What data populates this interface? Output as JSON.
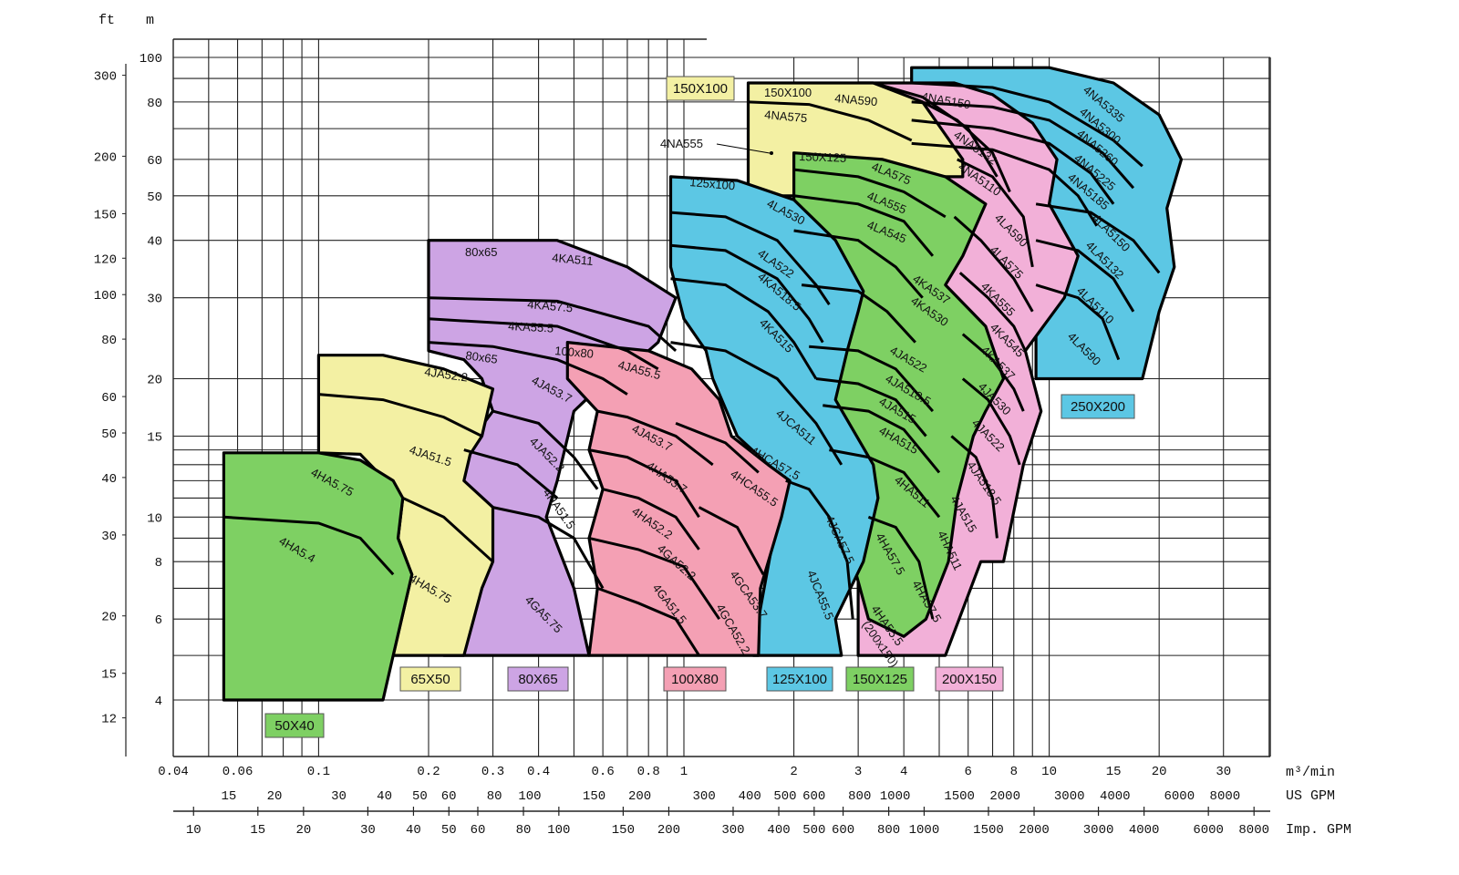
{
  "chart_data": {
    "type": "area",
    "title": "",
    "axis_units": {
      "left_outer": "ft",
      "left_inner": "m",
      "flow_metric": "m³/min",
      "flow_us": "US GPM",
      "flow_imp": "Imp. GPM"
    },
    "scale": "log-log",
    "x_range_m3_per_min": [
      0.04,
      45
    ],
    "y_range_m": [
      3,
      110
    ],
    "x_ticks": [
      "0.04",
      "0.06",
      "0.1",
      "0.2",
      "0.3",
      "0.4",
      "0.6",
      "0.8",
      "1",
      "2",
      "3",
      "4",
      "6",
      "8",
      "10",
      "15",
      "20",
      "30"
    ],
    "y_ticks_m": [
      "4",
      "6",
      "8",
      "10",
      "15",
      "20",
      "30",
      "40",
      "50",
      "60",
      "80",
      "100"
    ],
    "y_ticks_ft": [
      "12",
      "15",
      "20",
      "30",
      "40",
      "50",
      "60",
      "80",
      "100",
      "120",
      "150",
      "200",
      "300"
    ],
    "us_gpm_ticks": [
      "15",
      "20",
      "30",
      "40",
      "50",
      "60",
      "80",
      "100",
      "150",
      "200",
      "300",
      "400",
      "500",
      "600",
      "800",
      "1000",
      "1500",
      "2000",
      "3000",
      "4000",
      "6000",
      "8000"
    ],
    "imp_gpm_ticks": [
      "10",
      "15",
      "20",
      "30",
      "40",
      "50",
      "60",
      "80",
      "100",
      "150",
      "200",
      "300",
      "400",
      "500",
      "600",
      "800",
      "1000",
      "1500",
      "2000",
      "3000",
      "4000",
      "6000",
      "8000"
    ],
    "colors": {
      "green": "#7ed063",
      "yellow": "#f3f0a3",
      "purple": "#cda4e4",
      "pink": "#f4a0b4",
      "blue": "#5cc7e4",
      "light_pink": "#f2b0d8"
    },
    "pump_groups": [
      {
        "size": "50X40",
        "color": "green",
        "flow_range_m3min": [
          0.055,
          0.2
        ],
        "head_range_m": [
          4,
          13.8
        ],
        "models": [
          "4HA5.75",
          "4HA5.4"
        ]
      },
      {
        "size": "65X50",
        "color": "yellow",
        "flow_range_m3min": [
          0.1,
          0.3
        ],
        "head_range_m": [
          5,
          22.5
        ],
        "models": [
          "4JA52.2",
          "4JA51.5",
          "4HA5.75"
        ]
      },
      {
        "size": "80X65",
        "color": "purple",
        "flow_range_m3min": [
          0.2,
          1.0
        ],
        "head_range_m": [
          5,
          40
        ],
        "models": [
          "4KA511",
          "4KA57.5",
          "4KA55.5",
          "4JA53.7",
          "4JA52.2",
          "4HA51.5",
          "4GA5.75"
        ]
      },
      {
        "size": "100X80",
        "color": "pink",
        "flow_range_m3min": [
          0.45,
          1.8
        ],
        "head_range_m": [
          5,
          24
        ],
        "models": [
          "4JA55.5",
          "4JA53.7",
          "4HA53.7",
          "4HA52.2",
          "4GA52.2",
          "4GA51.5",
          "4HCA57.5",
          "4HCA55.5",
          "4GCA53.7",
          "4GCA52.2"
        ]
      },
      {
        "size": "125X100",
        "color": "blue",
        "flow_range_m3min": [
          0.9,
          3.7
        ],
        "head_range_m": [
          5,
          55
        ],
        "models": [
          "4LA530",
          "4LA522",
          "4KA518.5",
          "4KA515",
          "4JCA511",
          "4JCA57.5",
          "4JCA55.5"
        ]
      },
      {
        "size": "150X100",
        "color": "yellow",
        "flow_range_m3min": [
          1.5,
          6.0
        ],
        "head_range_m": [
          50,
          88
        ],
        "models": [
          "4NA590",
          "4NA575",
          "4NA555"
        ]
      },
      {
        "size": "150X125",
        "color": "green",
        "flow_range_m3min": [
          1.8,
          6.5
        ],
        "head_range_m": [
          5.5,
          62
        ],
        "models": [
          "4LA575",
          "4LA555",
          "4LA545",
          "4KA537",
          "4KA530",
          "4JA522",
          "4JA518.5",
          "4JA515",
          "4HA515",
          "4HA511",
          "4HA57.5"
        ]
      },
      {
        "size": "200X150",
        "color": "light_pink",
        "flow_range_m3min": [
          3,
          9.5
        ],
        "head_range_m": [
          5,
          88
        ],
        "models": [
          "4NA5150",
          "4NA5132",
          "4NA5110",
          "4LA590",
          "4LA575",
          "4KA555",
          "4KA545",
          "4KA537",
          "4JA530",
          "4JA522",
          "4JA518.5",
          "4JA515",
          "4HA511",
          "4HA57.5",
          "4HA55.5 (200x150)"
        ]
      },
      {
        "size": "250X200",
        "color": "blue",
        "flow_range_m3min": [
          4,
          22
        ],
        "head_range_m": [
          20,
          95
        ],
        "models": [
          "4NA5335",
          "4NA5300",
          "4NA5260",
          "4NA5225",
          "4NA5185",
          "4LA5150",
          "4LA5132",
          "4LA5110",
          "4LA590"
        ]
      }
    ],
    "region_labels": [
      "50X40",
      "65X50",
      "80X65",
      "100X80",
      "125X100",
      "150X125",
      "200X150",
      "250X200",
      "150X100"
    ],
    "inner_labels": [
      "4HA5.75",
      "4HA5.4",
      "4JA52.2",
      "4JA51.5",
      "4HA5.75",
      "80x65",
      "4KA511",
      "4KA57.5",
      "4KA55.5",
      "80x65",
      "4JA53.7",
      "4JA52.2",
      "4HA51.5",
      "4GA5.75",
      "100x80",
      "4JA55.5",
      "4JA53.7",
      "4HA53.7",
      "4HA52.2",
      "4GA52.2",
      "4GA51.5",
      "4HCA57.5",
      "4HCA55.5",
      "4GCA53.7",
      "4GCA52.2",
      "125x100",
      "4LA530",
      "4LA522",
      "4KA518.5",
      "4KA515",
      "4JCA511",
      "4JCA57.5",
      "4JCA55.5",
      "150X100",
      "4NA590",
      "4NA575",
      "4NA555",
      "150X125",
      "4LA575",
      "4LA555",
      "4LA545",
      "4KA537",
      "4KA530",
      "4JA522",
      "4JA518.5",
      "4JA515",
      "4HA515",
      "4HA511",
      "4HA57.5",
      "4HA57.5",
      "4NA5150",
      "4NA5132",
      "4NA5110",
      "4LA590",
      "4LA575",
      "4KA555",
      "4KA545",
      "4KA537",
      "4JA530",
      "4JA522",
      "4JA518.5",
      "4JA515",
      "4HA511",
      "4HA55.5",
      "(200x150)",
      "4NA5335",
      "4NA5300",
      "4NA5260",
      "4NA5225",
      "4NA5185",
      "4LA5150",
      "4LA5132",
      "4LA5110",
      "4LA590"
    ]
  }
}
